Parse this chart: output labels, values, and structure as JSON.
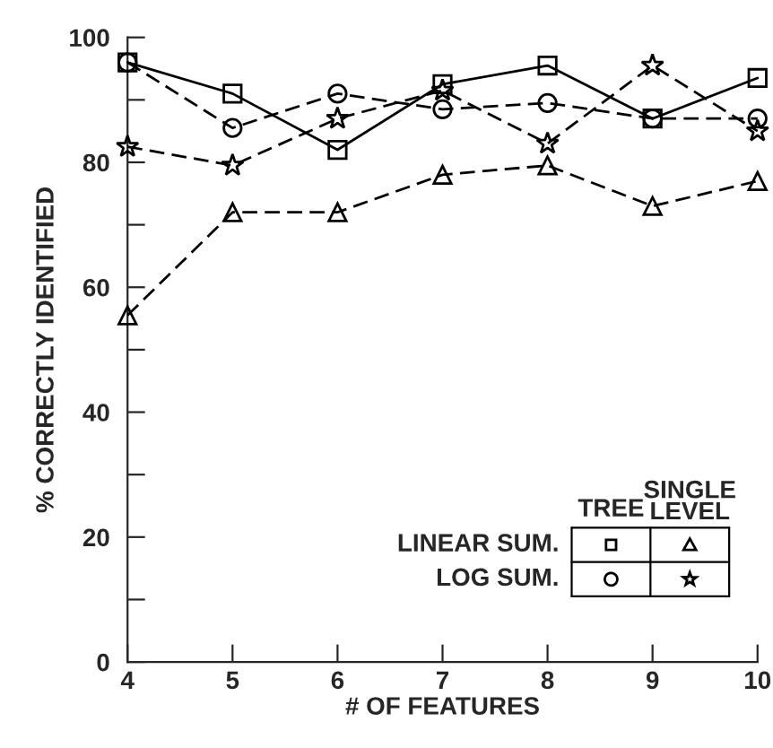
{
  "chart_data": {
    "type": "line",
    "xlabel": "# OF FEATURES",
    "ylabel": "% CORRECTLY IDENTIFIED",
    "x": [
      4,
      5,
      6,
      7,
      8,
      9,
      10
    ],
    "series": [
      {
        "color": "#000000",
        "marker": "square",
        "line_style": "solid",
        "values": [
          96,
          91,
          82,
          92.5,
          95.5,
          87,
          93.5
        ]
      },
      {
        "color": "#000000",
        "marker": "circle",
        "line_style": "dashed",
        "values": [
          96,
          85.5,
          91,
          88.5,
          89.5,
          87,
          87
        ]
      },
      {
        "color": "#000000",
        "marker": "triangle",
        "line_style": "dashed",
        "values": [
          55.5,
          72,
          72,
          78,
          79.5,
          73,
          77
        ]
      },
      {
        "color": "#000000",
        "marker": "star",
        "line_style": "dashed",
        "values": [
          82.5,
          79.5,
          87,
          91.5,
          83,
          95.5,
          85
        ]
      }
    ],
    "xlim": [
      4,
      10
    ],
    "xticks": [
      4,
      5,
      6,
      7,
      8,
      9,
      10
    ],
    "ylim": [
      0,
      100
    ],
    "yticks": [
      0,
      {
        "value": 10,
        "label": null
      },
      20,
      {
        "value": 30,
        "label": null
      },
      40,
      {
        "value": 50,
        "label": null
      },
      60,
      {
        "value": 70,
        "label": null
      },
      80,
      {
        "value": 90,
        "label": null
      },
      100
    ],
    "grid": false,
    "annotations": [
      "TREE",
      "SINGLE\nLEVEL",
      "LINEAR SUM.",
      "LOG SUM."
    ]
  }
}
